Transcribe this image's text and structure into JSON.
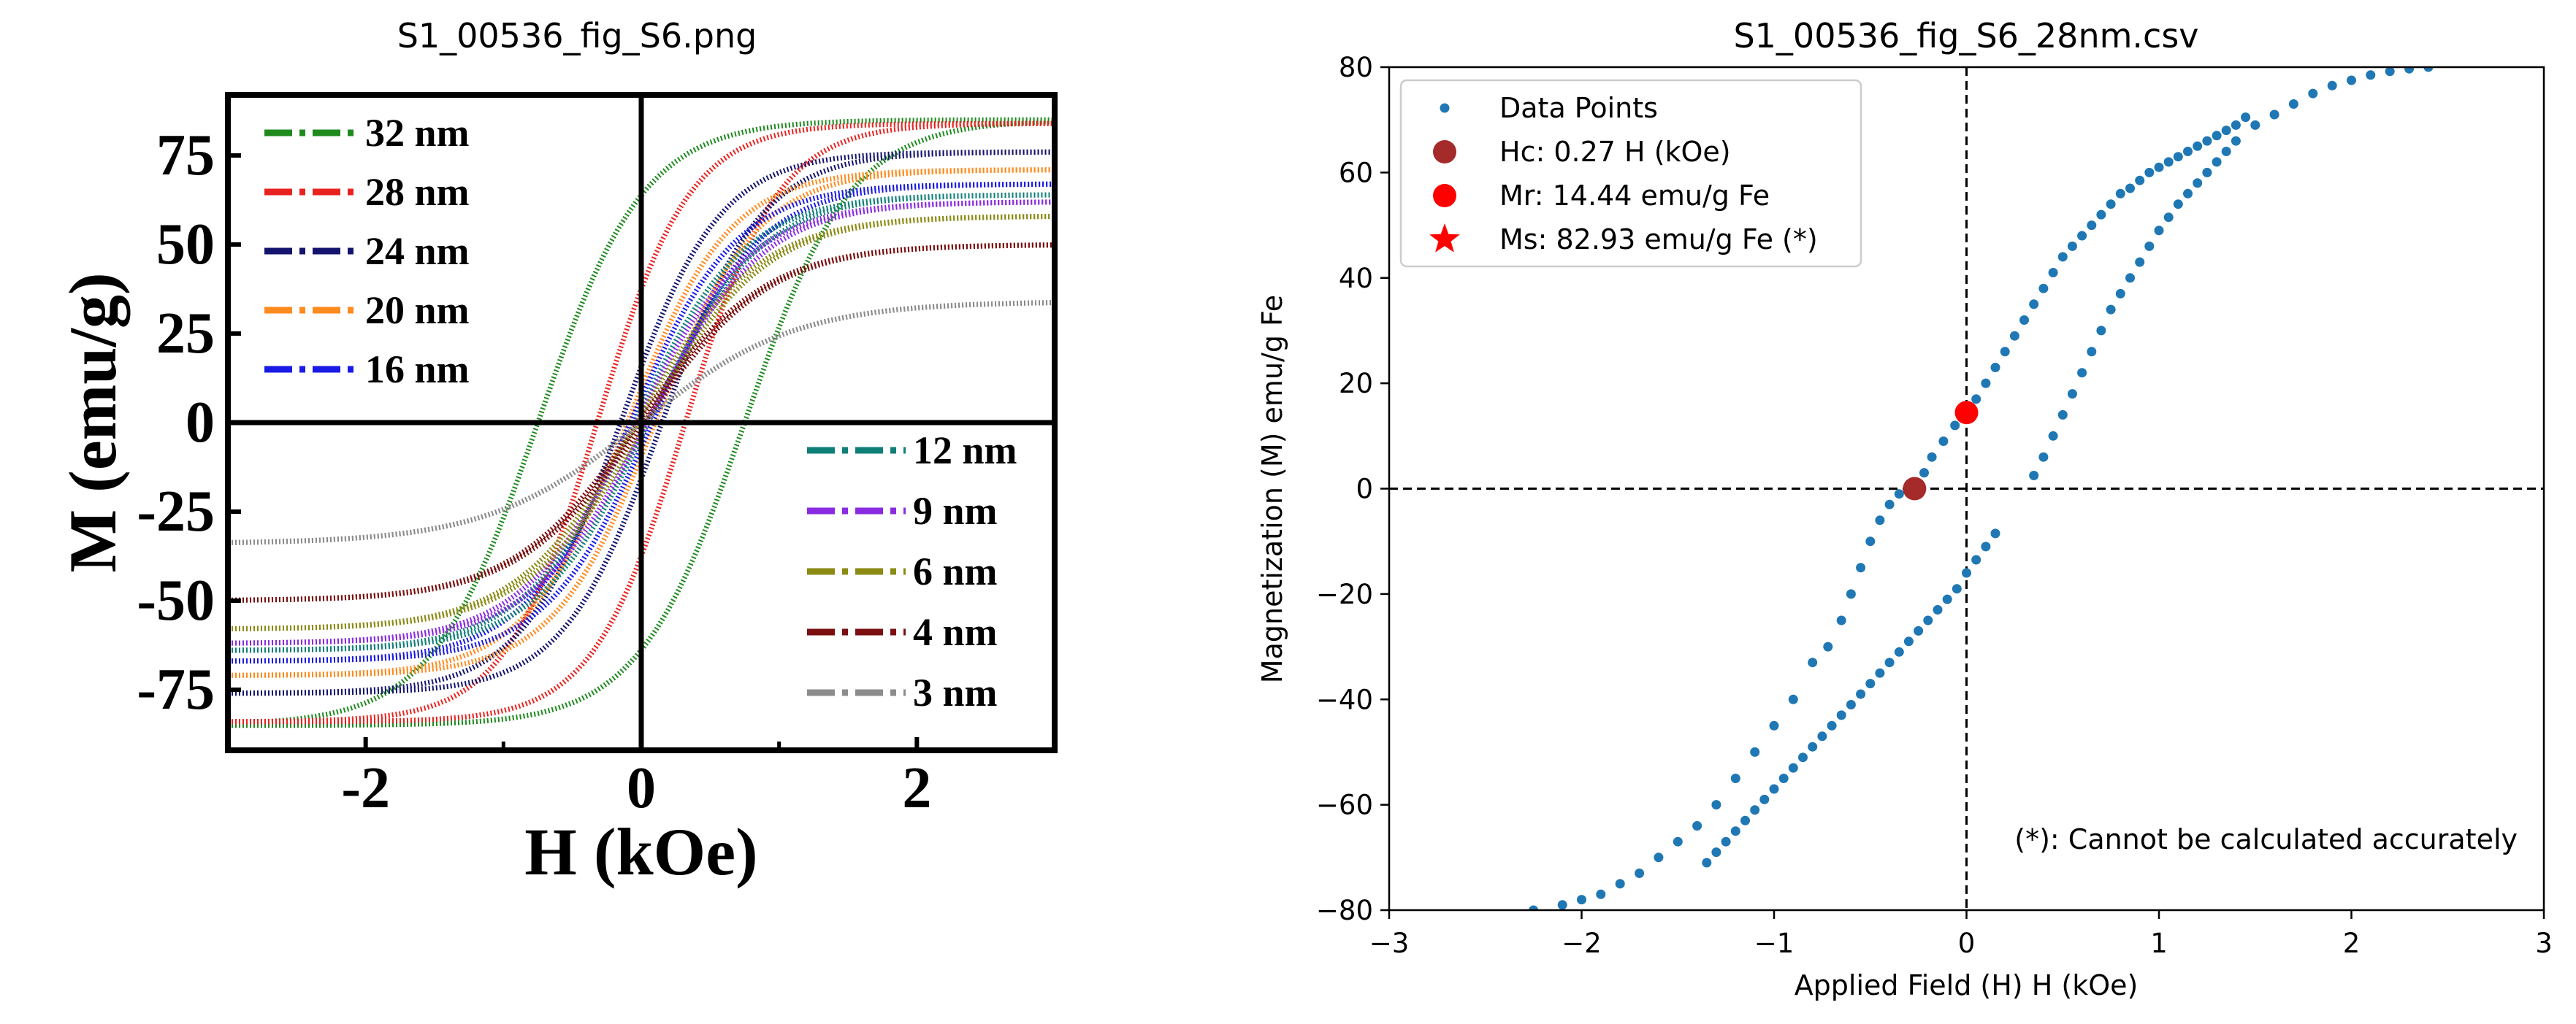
{
  "chart_data": [
    {
      "panel_title": "S1_00536_fig_S6.png",
      "type": "line",
      "xlabel": "H (kOe)",
      "ylabel": "M (emu/g)",
      "xlim": [
        -3,
        3
      ],
      "ylim": [
        -92,
        92
      ],
      "xticks": [
        -2,
        0,
        2
      ],
      "yticks": [
        -75,
        -50,
        -25,
        0,
        25,
        50,
        75
      ],
      "legend_left": "upper-left",
      "legend_right": "lower-right",
      "series": [
        {
          "name": "32 nm",
          "color": "#1e8a1e",
          "ms": 85,
          "hc": 0.75,
          "k": 1.3,
          "legend": "left"
        },
        {
          "name": "28 nm",
          "color": "#e8231f",
          "ms": 84,
          "hc": 0.32,
          "k": 1.5,
          "legend": "left"
        },
        {
          "name": "24 nm",
          "color": "#14146e",
          "ms": 76,
          "hc": 0.15,
          "k": 1.4,
          "legend": "left"
        },
        {
          "name": "20 nm",
          "color": "#ff8a1e",
          "ms": 71,
          "hc": 0.1,
          "k": 1.35,
          "legend": "left"
        },
        {
          "name": "16 nm",
          "color": "#1a1ae6",
          "ms": 67,
          "hc": 0.08,
          "k": 1.3,
          "legend": "left"
        },
        {
          "name": "12 nm",
          "color": "#0f7f78",
          "ms": 64,
          "hc": 0.05,
          "k": 1.25,
          "legend": "right"
        },
        {
          "name": "9 nm",
          "color": "#8a2be2",
          "ms": 62,
          "hc": 0.04,
          "k": 1.2,
          "legend": "right"
        },
        {
          "name": "6 nm",
          "color": "#8a8a14",
          "ms": 58,
          "hc": 0.03,
          "k": 1.15,
          "legend": "right"
        },
        {
          "name": "4 nm",
          "color": "#7a0f0f",
          "ms": 50,
          "hc": 0.02,
          "k": 1.1,
          "legend": "right"
        },
        {
          "name": "3 nm",
          "color": "#8c8c8c",
          "ms": 34,
          "hc": 0.0,
          "k": 0.9,
          "legend": "right"
        }
      ]
    },
    {
      "panel_title": "S1_00536_fig_S6_28nm.csv",
      "type": "scatter",
      "xlabel": "Applied Field (H) H (kOe)",
      "ylabel": "Magnetization (M) emu/g Fe",
      "xlim": [
        -3,
        3
      ],
      "ylim": [
        -80,
        80
      ],
      "xticks": [
        -3,
        -2,
        -1,
        0,
        1,
        2,
        3
      ],
      "yticks": [
        -80,
        -60,
        -40,
        -20,
        0,
        20,
        40,
        60,
        80
      ],
      "tick_labels_x": [
        "−3",
        "−2",
        "−1",
        "0",
        "1",
        "2",
        "3"
      ],
      "tick_labels_y": [
        "−80",
        "−60",
        "−40",
        "−20",
        "0",
        "20",
        "40",
        "60",
        "80"
      ],
      "legend_position": "upper-left",
      "legend": [
        {
          "label": "Data Points",
          "marker": "dot",
          "color": "#1f77b4"
        },
        {
          "label": "Hc: 0.27 H (kOe)",
          "marker": "circle",
          "color": "#a52a2a"
        },
        {
          "label": "Mr: 14.44 emu/g Fe",
          "marker": "circle",
          "color": "#ff0000"
        },
        {
          "label": "Ms: 82.93 emu/g Fe (*)",
          "marker": "star",
          "color": "#ff0000"
        }
      ],
      "hc": 0.27,
      "mr": 14.44,
      "ms": 82.93,
      "highlight_points": [
        {
          "name": "Hc",
          "x": -0.27,
          "y": 0,
          "color": "#a52a2a"
        },
        {
          "name": "Mr",
          "x": 0,
          "y": 14.44,
          "color": "#ff0000"
        }
      ],
      "annotation": "(*): Cannot be calculated accurately",
      "data_color": "#1f77b4",
      "upper_branch": [
        [
          -2.25,
          -80
        ],
        [
          -2.1,
          -79
        ],
        [
          -2.0,
          -78
        ],
        [
          -1.9,
          -77
        ],
        [
          -1.8,
          -75
        ],
        [
          -1.7,
          -73
        ],
        [
          -1.6,
          -70
        ],
        [
          -1.5,
          -67
        ],
        [
          -1.4,
          -64
        ],
        [
          -1.3,
          -60
        ],
        [
          -1.2,
          -55
        ],
        [
          -1.1,
          -50
        ],
        [
          -1.0,
          -45
        ],
        [
          -0.9,
          -40
        ],
        [
          -0.8,
          -33
        ],
        [
          -0.72,
          -30
        ],
        [
          -0.65,
          -25
        ],
        [
          -0.6,
          -20
        ],
        [
          -0.55,
          -15
        ],
        [
          -0.5,
          -10
        ],
        [
          -0.45,
          -6
        ],
        [
          -0.4,
          -3
        ],
        [
          -0.35,
          -1
        ],
        [
          -0.27,
          0
        ],
        [
          -0.22,
          3
        ],
        [
          -0.18,
          6
        ],
        [
          -0.12,
          9
        ],
        [
          -0.06,
          12
        ],
        [
          0.0,
          14.44
        ],
        [
          0.05,
          17
        ],
        [
          0.1,
          20
        ],
        [
          0.15,
          23
        ],
        [
          0.2,
          26
        ],
        [
          0.25,
          29
        ],
        [
          0.3,
          32
        ],
        [
          0.35,
          35
        ],
        [
          0.4,
          38
        ],
        [
          0.45,
          41
        ],
        [
          0.5,
          44
        ],
        [
          0.55,
          46
        ],
        [
          0.6,
          48
        ],
        [
          0.65,
          50
        ],
        [
          0.7,
          52
        ],
        [
          0.75,
          54
        ],
        [
          0.8,
          56
        ],
        [
          0.85,
          57
        ],
        [
          0.9,
          58.5
        ],
        [
          0.95,
          60
        ],
        [
          1.0,
          61
        ],
        [
          1.05,
          62
        ],
        [
          1.1,
          63
        ],
        [
          1.15,
          64
        ],
        [
          1.2,
          65
        ],
        [
          1.25,
          66
        ],
        [
          1.3,
          67
        ],
        [
          1.35,
          68
        ],
        [
          1.4,
          69
        ],
        [
          1.45,
          70.5
        ]
      ],
      "lower_branch": [
        [
          -1.35,
          -71
        ],
        [
          -1.3,
          -69
        ],
        [
          -1.25,
          -67
        ],
        [
          -1.2,
          -65
        ],
        [
          -1.15,
          -63
        ],
        [
          -1.1,
          -61
        ],
        [
          -1.05,
          -59
        ],
        [
          -1.0,
          -57
        ],
        [
          -0.95,
          -55
        ],
        [
          -0.9,
          -53
        ],
        [
          -0.85,
          -51
        ],
        [
          -0.8,
          -49
        ],
        [
          -0.75,
          -47
        ],
        [
          -0.7,
          -45
        ],
        [
          -0.65,
          -43
        ],
        [
          -0.6,
          -41
        ],
        [
          -0.55,
          -39
        ],
        [
          -0.5,
          -37
        ],
        [
          -0.45,
          -35
        ],
        [
          -0.4,
          -33
        ],
        [
          -0.35,
          -31
        ],
        [
          -0.3,
          -29
        ],
        [
          -0.25,
          -27
        ],
        [
          -0.2,
          -25
        ],
        [
          -0.15,
          -23
        ],
        [
          -0.1,
          -21
        ],
        [
          -0.05,
          -19
        ],
        [
          0.0,
          -16
        ],
        [
          0.05,
          -13.5
        ],
        [
          0.1,
          -11
        ],
        [
          0.15,
          -8.5
        ],
        [
          0.35,
          2.5
        ],
        [
          0.4,
          6
        ],
        [
          0.45,
          10
        ],
        [
          0.5,
          14
        ],
        [
          0.55,
          18
        ],
        [
          0.6,
          22
        ],
        [
          0.65,
          26
        ],
        [
          0.7,
          30
        ],
        [
          0.75,
          34
        ],
        [
          0.8,
          37
        ],
        [
          0.85,
          40
        ],
        [
          0.9,
          43
        ],
        [
          0.95,
          46
        ],
        [
          1.0,
          49
        ],
        [
          1.05,
          51.5
        ],
        [
          1.1,
          54
        ],
        [
          1.15,
          56
        ],
        [
          1.2,
          58
        ],
        [
          1.25,
          60
        ],
        [
          1.3,
          62
        ],
        [
          1.35,
          64
        ],
        [
          1.4,
          66
        ],
        [
          1.5,
          69
        ],
        [
          1.6,
          71
        ],
        [
          1.7,
          73
        ],
        [
          1.8,
          75
        ],
        [
          1.9,
          76.5
        ],
        [
          2.0,
          77.5
        ],
        [
          2.1,
          78.5
        ],
        [
          2.2,
          79.2
        ],
        [
          2.3,
          79.7
        ],
        [
          2.4,
          80
        ]
      ]
    }
  ]
}
